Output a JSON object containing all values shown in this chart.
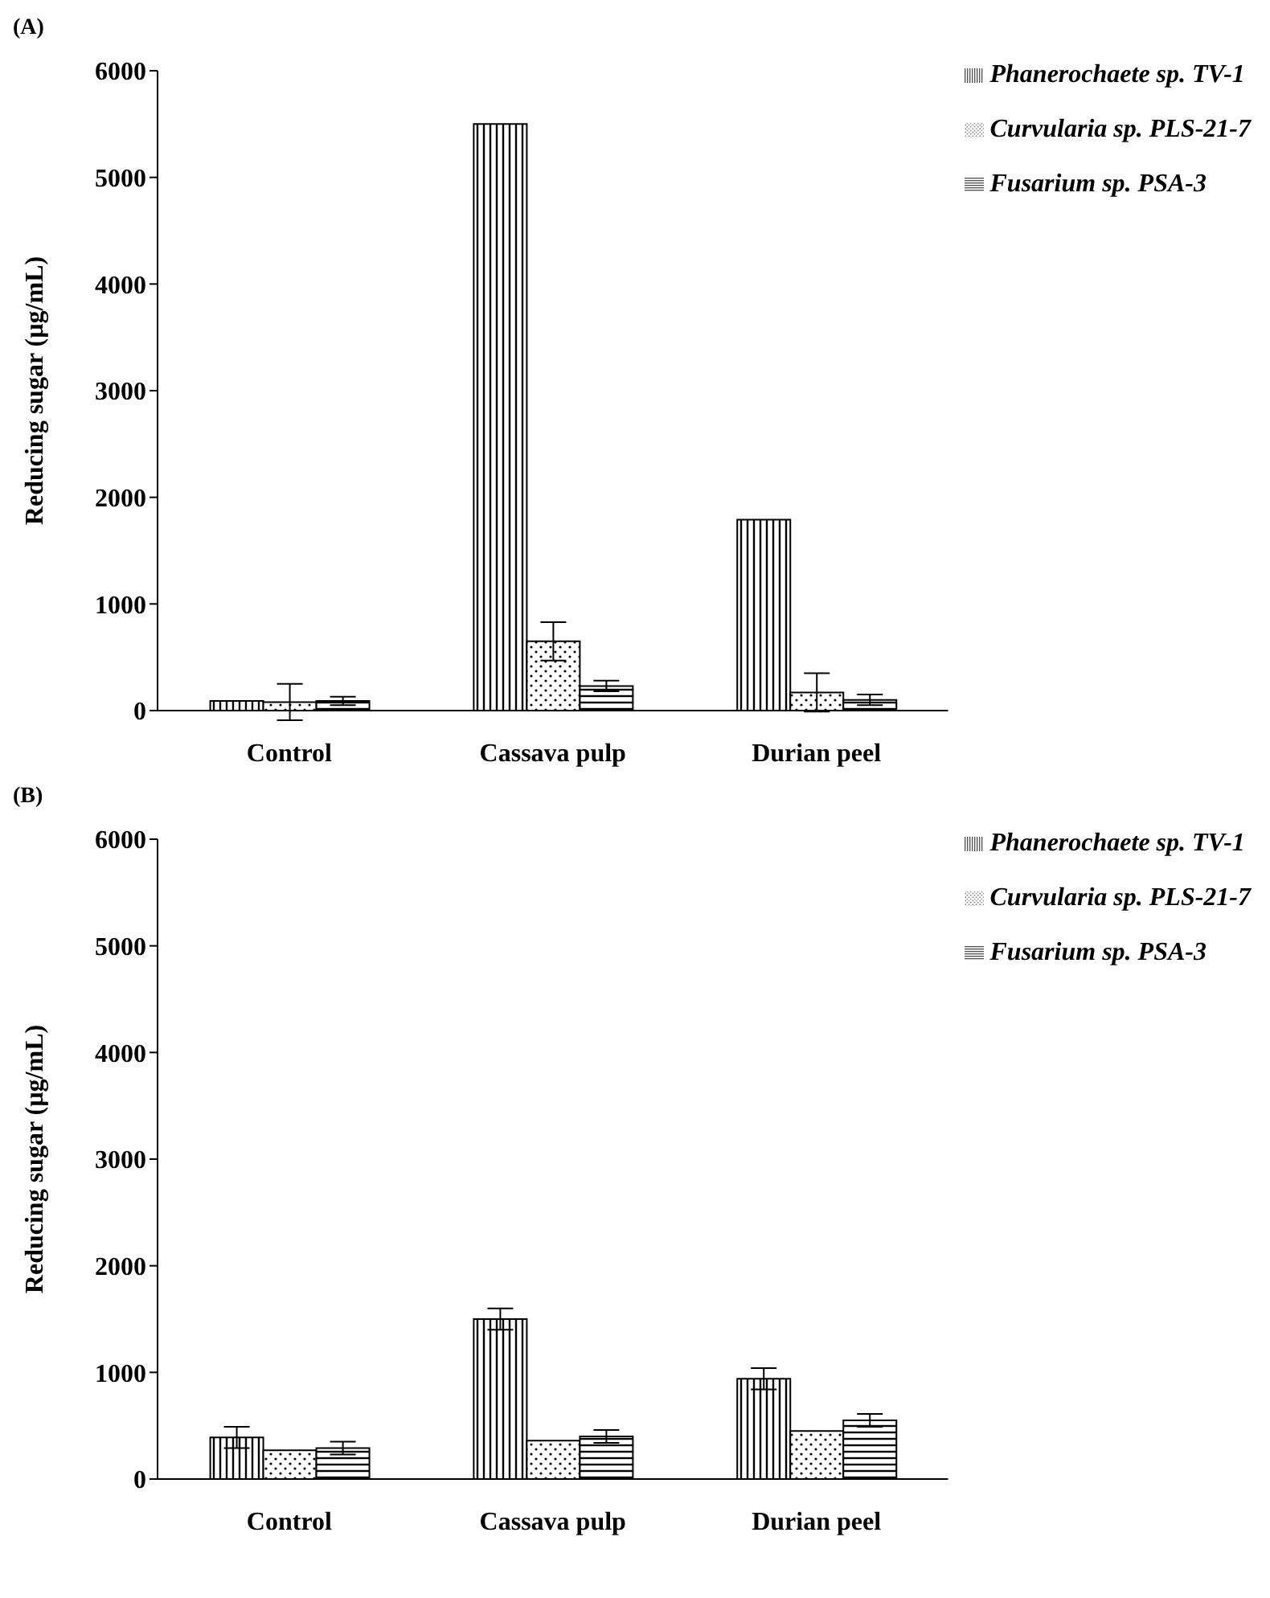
{
  "chart_data": [
    {
      "type": "bar",
      "title": "(A)",
      "ylabel": "Reducing sugar (µg/mL)",
      "categories": [
        "Control",
        "Cassava pulp",
        "Durian peel"
      ],
      "ylim": [
        0,
        6000
      ],
      "yticks": [
        0,
        1000,
        2000,
        3000,
        4000,
        5000,
        6000
      ],
      "grid": false,
      "legend": "top right",
      "series": [
        {
          "name": "Phanerochaete sp. TV-1",
          "color": "#000000",
          "values": [
            90,
            5500,
            1790
          ],
          "errors": [
            null,
            null,
            null
          ]
        },
        {
          "name": "Curvularia sp. PLS-21-7",
          "color": "#000000",
          "values": [
            80,
            650,
            170
          ],
          "errors": [
            170,
            180,
            180
          ]
        },
        {
          "name": "Fusarium sp. PSA-3",
          "color": "#000000",
          "values": [
            90,
            230,
            100
          ],
          "errors": [
            40,
            50,
            50
          ]
        }
      ]
    },
    {
      "type": "bar",
      "title": "(B)",
      "ylabel": "Reducing sugar (µg/mL)",
      "categories": [
        "Control",
        "Cassava pulp",
        "Durian peel"
      ],
      "ylim": [
        0,
        6000
      ],
      "yticks": [
        0,
        1000,
        2000,
        3000,
        4000,
        5000,
        6000
      ],
      "grid": false,
      "legend": "top right",
      "series": [
        {
          "name": "Phanerochaete sp. TV-1",
          "color": "#000000",
          "values": [
            390,
            1500,
            940
          ],
          "errors": [
            100,
            100,
            100
          ]
        },
        {
          "name": "Curvularia sp. PLS-21-7",
          "color": "#000000",
          "values": [
            270,
            360,
            450
          ],
          "errors": [
            null,
            null,
            null
          ]
        },
        {
          "name": "Fusarium sp. PSA-3",
          "color": "#000000",
          "values": [
            290,
            400,
            550
          ],
          "errors": [
            60,
            60,
            60
          ]
        }
      ]
    }
  ]
}
